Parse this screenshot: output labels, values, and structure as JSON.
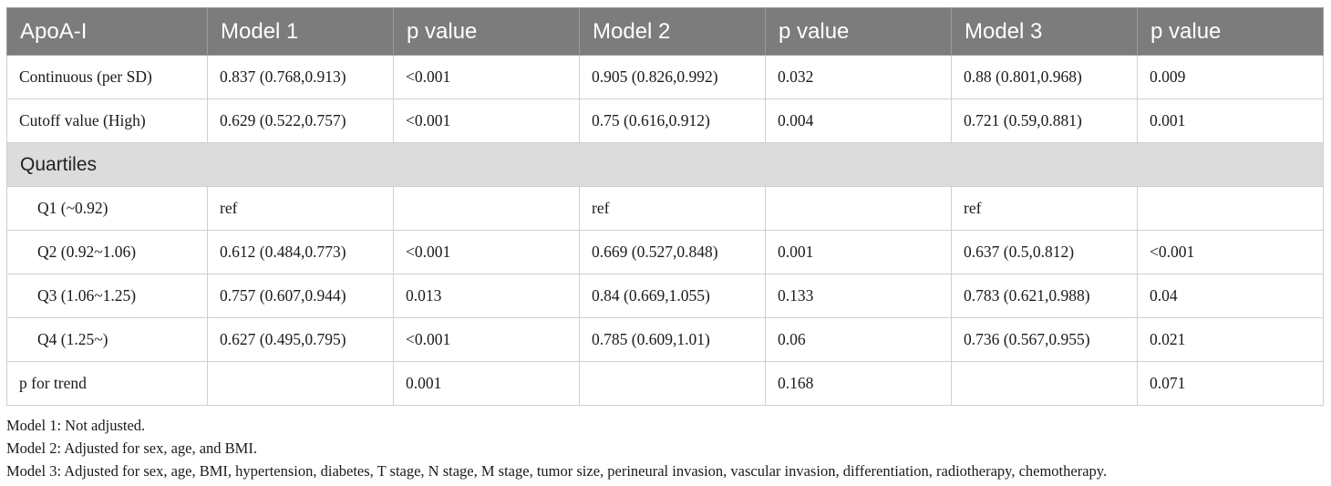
{
  "table": {
    "headers": [
      "ApoA-I",
      "Model 1",
      "p value",
      "Model 2",
      "p value",
      "Model 3",
      "p value"
    ],
    "rows_top": [
      {
        "label": "Continuous (per SD)",
        "cells": [
          "0.837 (0.768,0.913)",
          "<0.001",
          "0.905 (0.826,0.992)",
          "0.032",
          "0.88 (0.801,0.968)",
          "0.009"
        ]
      },
      {
        "label": "Cutoff value (High)",
        "cells": [
          "0.629 (0.522,0.757)",
          "<0.001",
          "0.75 (0.616,0.912)",
          "0.004",
          "0.721 (0.59,0.881)",
          "0.001"
        ]
      }
    ],
    "section_label": "Quartiles",
    "rows_quartiles": [
      {
        "label": "Q1 (~0.92)",
        "cells": [
          "ref",
          "",
          "ref",
          "",
          "ref",
          ""
        ]
      },
      {
        "label": "Q2 (0.92~1.06)",
        "cells": [
          "0.612 (0.484,0.773)",
          "<0.001",
          "0.669 (0.527,0.848)",
          "0.001",
          "0.637 (0.5,0.812)",
          "<0.001"
        ]
      },
      {
        "label": "Q3 (1.06~1.25)",
        "cells": [
          "0.757 (0.607,0.944)",
          "0.013",
          "0.84 (0.669,1.055)",
          "0.133",
          "0.783 (0.621,0.988)",
          "0.04"
        ]
      },
      {
        "label": "Q4 (1.25~)",
        "cells": [
          "0.627 (0.495,0.795)",
          "<0.001",
          "0.785 (0.609,1.01)",
          "0.06",
          "0.736 (0.567,0.955)",
          "0.021"
        ]
      }
    ],
    "trend_row": {
      "label": "p for trend",
      "cells": [
        "",
        "0.001",
        "",
        "0.168",
        "",
        "0.071"
      ]
    }
  },
  "footnotes": [
    "Model 1: Not adjusted.",
    "Model 2: Adjusted for sex, age, and BMI.",
    "Model 3: Adjusted for sex, age, BMI, hypertension, diabetes, T stage, N stage, M stage, tumor size, perineural invasion, vascular invasion, differentiation, radiotherapy, chemotherapy."
  ]
}
